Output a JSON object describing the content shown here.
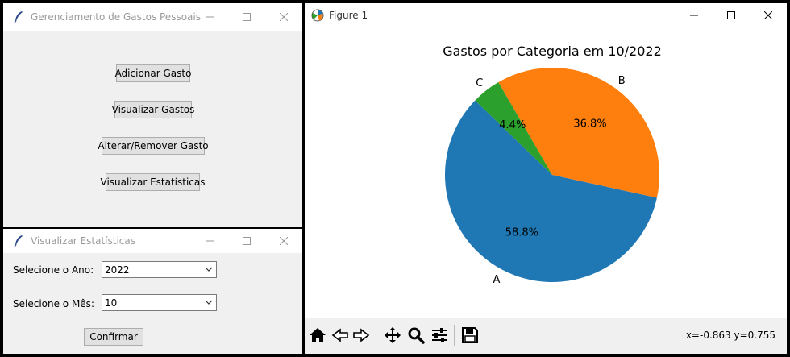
{
  "main_window": {
    "title": "Gerenciamento de Gastos Pessoais",
    "buttons": {
      "add": "Adicionar Gasto",
      "view": "Visualizar Gastos",
      "edit": "Alterar/Remover Gasto",
      "stats": "Visualizar Estatísticas"
    }
  },
  "stats_window": {
    "title": "Visualizar Estatísticas",
    "year_label": "Selecione o Ano:",
    "year_value": "2022",
    "month_label": "Selecione o Mês:",
    "month_value": "10",
    "confirm": "Confirmar"
  },
  "figure_window": {
    "title": "Figure 1",
    "coords": "x=-0.863 y=0.755"
  },
  "chart_data": {
    "type": "pie",
    "title": "Gastos por Categoria em 10/2022",
    "labels": [
      "A",
      "B",
      "C"
    ],
    "values": [
      58.8,
      36.8,
      4.4
    ],
    "percent_labels": [
      "58.8%",
      "36.8%",
      "4.4%"
    ],
    "colors": [
      "#1f77b4",
      "#ff7f0e",
      "#2ca02c"
    ]
  }
}
